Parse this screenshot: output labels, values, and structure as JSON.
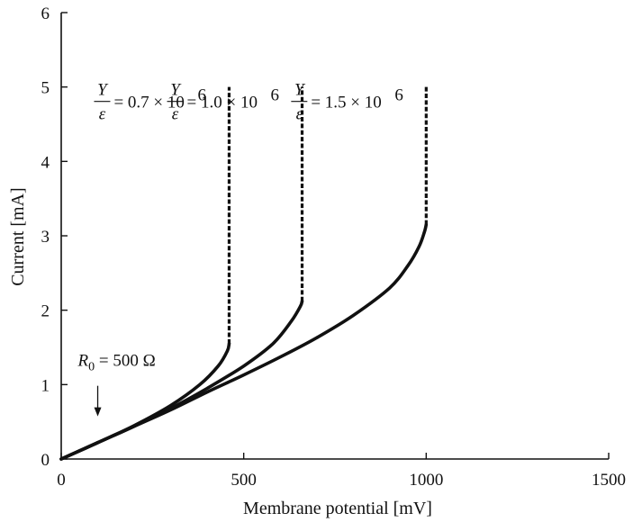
{
  "chart_data": {
    "type": "line",
    "title": "",
    "xlabel": "Membrane potential  [mV]",
    "ylabel": "Current  [mA]",
    "xlim": [
      0,
      1500
    ],
    "ylim": [
      0,
      6
    ],
    "xticks": [
      "0",
      "500",
      "1000",
      "1500"
    ],
    "yticks": [
      "0",
      "1",
      "2",
      "3",
      "4",
      "5",
      "6"
    ],
    "grid": false,
    "legend": "none",
    "series": [
      {
        "label_lhs_num": "Y",
        "label_lhs_den": "ε",
        "label_rhs": "= 0.7 × 10",
        "label_exp": "6",
        "x": [
          0,
          100,
          200,
          300,
          380,
          430,
          455,
          460
        ],
        "y": [
          0,
          0.22,
          0.45,
          0.72,
          1.0,
          1.25,
          1.45,
          1.55
        ],
        "vertical": {
          "x": 460,
          "y_from": 1.55,
          "y_to": 5.0
        }
      },
      {
        "label_lhs_num": "Y",
        "label_lhs_den": "ε",
        "label_rhs": "= 1.0 × 10",
        "label_exp": "6",
        "x": [
          0,
          100,
          200,
          300,
          400,
          500,
          580,
          630,
          655,
          660
        ],
        "y": [
          0,
          0.22,
          0.44,
          0.68,
          0.95,
          1.25,
          1.55,
          1.85,
          2.05,
          2.12
        ],
        "vertical": {
          "x": 660,
          "y_from": 2.12,
          "y_to": 5.0
        }
      },
      {
        "label_lhs_num": "Y",
        "label_lhs_den": "ε",
        "label_rhs": "= 1.5 × 10",
        "label_exp": "6",
        "x": [
          0,
          100,
          200,
          300,
          400,
          500,
          600,
          700,
          800,
          900,
          950,
          980,
          995,
          1000
        ],
        "y": [
          0,
          0.22,
          0.44,
          0.66,
          0.9,
          1.13,
          1.37,
          1.63,
          1.93,
          2.3,
          2.6,
          2.85,
          3.05,
          3.15
        ],
        "vertical": {
          "x": 1000,
          "y_from": 3.15,
          "y_to": 5.0
        }
      }
    ],
    "annotations": [
      {
        "prefix": "R",
        "sub": "0",
        "text": " = 500 Ω",
        "arrow_to": {
          "x": 100,
          "y": 0.5
        }
      }
    ]
  }
}
